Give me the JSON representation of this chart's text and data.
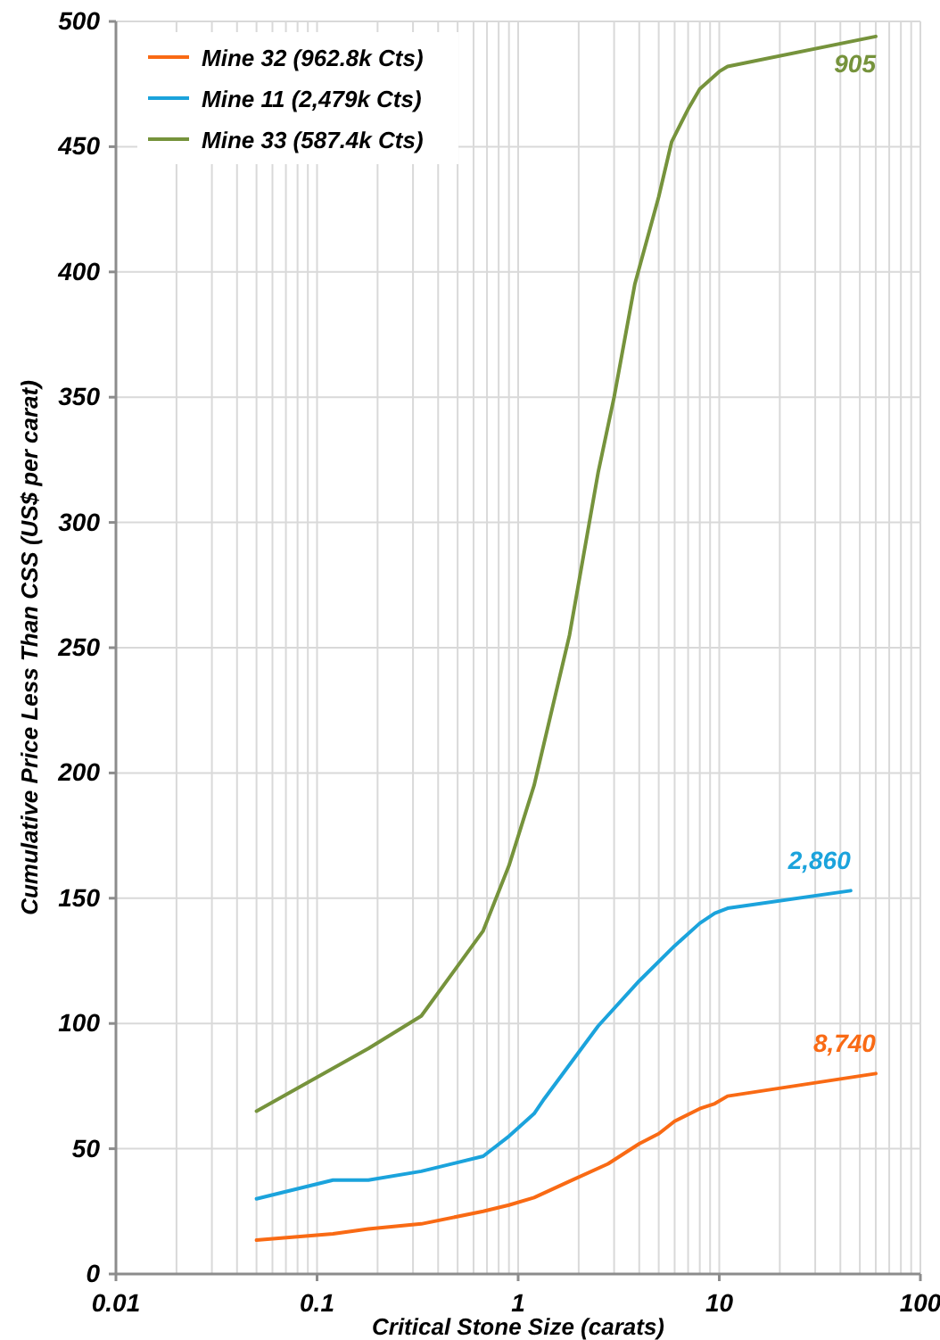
{
  "chart_data": {
    "type": "line",
    "xlabel": "Critical Stone Size (carats)",
    "ylabel": "Cumulative Price Less Than CSS (US$ per carat)",
    "log": "x",
    "xlim": [
      0.01,
      100
    ],
    "ylim": [
      0,
      500
    ],
    "xticks": [
      0.01,
      {
        "value": 0.02,
        "label": null
      },
      {
        "value": 0.03,
        "label": null
      },
      {
        "value": 0.04,
        "label": null
      },
      {
        "value": 0.05,
        "label": null
      },
      {
        "value": 0.06,
        "label": null
      },
      {
        "value": 0.07,
        "label": null
      },
      {
        "value": 0.08,
        "label": null
      },
      {
        "value": 0.09,
        "label": null
      },
      0.1,
      {
        "value": 0.2,
        "label": null
      },
      {
        "value": 0.3,
        "label": null
      },
      {
        "value": 0.4,
        "label": null
      },
      {
        "value": 0.5,
        "label": null
      },
      {
        "value": 0.6,
        "label": null
      },
      {
        "value": 0.7,
        "label": null
      },
      {
        "value": 0.8,
        "label": null
      },
      {
        "value": 0.9,
        "label": null
      },
      1,
      {
        "value": 2,
        "label": null
      },
      {
        "value": 3,
        "label": null
      },
      {
        "value": 4,
        "label": null
      },
      {
        "value": 5,
        "label": null
      },
      {
        "value": 6,
        "label": null
      },
      {
        "value": 7,
        "label": null
      },
      {
        "value": 8,
        "label": null
      },
      {
        "value": 9,
        "label": null
      },
      10,
      {
        "value": 20,
        "label": null
      },
      {
        "value": 30,
        "label": null
      },
      {
        "value": 40,
        "label": null
      },
      {
        "value": 50,
        "label": null
      },
      {
        "value": 60,
        "label": null
      },
      {
        "value": 70,
        "label": null
      },
      {
        "value": 80,
        "label": null
      },
      {
        "value": 90,
        "label": null
      },
      100
    ],
    "yticks": [
      0,
      50,
      100,
      150,
      200,
      250,
      300,
      350,
      400,
      450,
      500
    ],
    "grid": true,
    "legend": "top left",
    "marker": "none",
    "line_style": "solid",
    "series": [
      {
        "name": "Mine 32 (962.8k Cts)",
        "color": "#f96a14",
        "x": [
          0.05,
          0.12,
          0.18,
          0.33,
          0.67,
          0.9,
          1.2,
          1.8,
          2.8,
          4,
          5,
          6,
          8,
          9.5,
          11,
          60
        ],
        "values": [
          13.5,
          16,
          18,
          20,
          25,
          27.5,
          30.5,
          37,
          44,
          52,
          56,
          61,
          66,
          68,
          71,
          80
        ]
      },
      {
        "name": "Mine 11 (2,479k Cts)",
        "color": "#1ba3dc",
        "x": [
          0.05,
          0.12,
          0.18,
          0.33,
          0.67,
          0.9,
          1.2,
          1.35,
          2.5,
          4,
          6,
          8,
          9.5,
          11,
          45
        ],
        "values": [
          30,
          37.5,
          37.5,
          41,
          47,
          55,
          64,
          70,
          99,
          117,
          131,
          140,
          144,
          146,
          153
        ]
      },
      {
        "name": "Mine 33 (587.4k Cts)",
        "color": "#76933c",
        "x": [
          0.05,
          0.18,
          0.33,
          0.67,
          0.9,
          1.2,
          1.8,
          2.5,
          3,
          3.8,
          5,
          5.8,
          7,
          8,
          10,
          11,
          60
        ],
        "values": [
          65,
          90,
          103,
          137,
          163,
          195,
          255,
          320,
          350,
          395,
          430,
          452,
          465,
          473,
          480,
          482,
          494
        ]
      }
    ],
    "annotations": [
      "8,740",
      "2,860",
      "905"
    ]
  }
}
